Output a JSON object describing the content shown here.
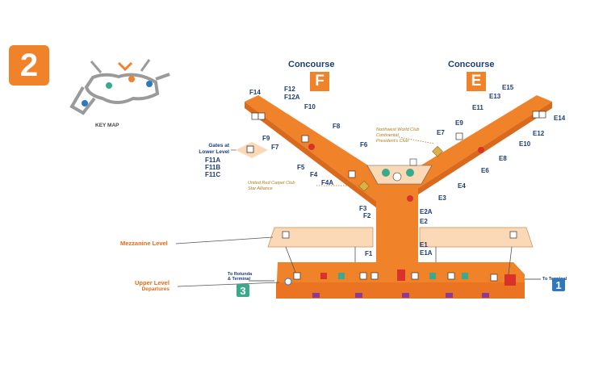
{
  "terminal_number": "2",
  "key_map": {
    "label": "KEY MAP"
  },
  "concourses": [
    {
      "word": "Concourse",
      "letter": "F"
    },
    {
      "word": "Concourse",
      "letter": "E"
    }
  ],
  "gates_f": [
    "F14",
    "F12",
    "F12A",
    "F10",
    "F9",
    "F8",
    "F7",
    "F6",
    "F5",
    "F4",
    "F4A",
    "F3",
    "F2",
    "F1"
  ],
  "gates_e": [
    "E15",
    "E13",
    "E11",
    "E9",
    "E7",
    "E14",
    "E12",
    "E10",
    "E8",
    "E6",
    "E4",
    "E3",
    "E2A",
    "E2",
    "E1",
    "E1A"
  ],
  "lower_level_gates": {
    "title_line1": "Gates at",
    "title_line2": "Lower Level",
    "gates": [
      "F11A",
      "F11B",
      "F11C"
    ]
  },
  "clubs": {
    "northwest_line1": "Northwest World Club",
    "northwest_line2": "Continental",
    "northwest_line3": "President's Club",
    "united_line1": "United Red Carpet Club",
    "united_line2": "Star Alliance"
  },
  "levels": {
    "mezzanine": "Mezzanine Level",
    "upper_line1": "Upper Level",
    "upper_line2": "Departures"
  },
  "connections": {
    "left_text1": "To Rotunda",
    "left_text2": "& Terminal",
    "left_badge": "3",
    "right_text": "To Terminal",
    "right_badge": "1"
  },
  "colors": {
    "concourse": "#f0822a",
    "mezzanine": "#fbd9b7",
    "navy": "#1c3d7a",
    "gold": "#b07d1c",
    "teal": "#3aaa8c",
    "blue": "#2e78c0",
    "red": "#d9322a"
  }
}
